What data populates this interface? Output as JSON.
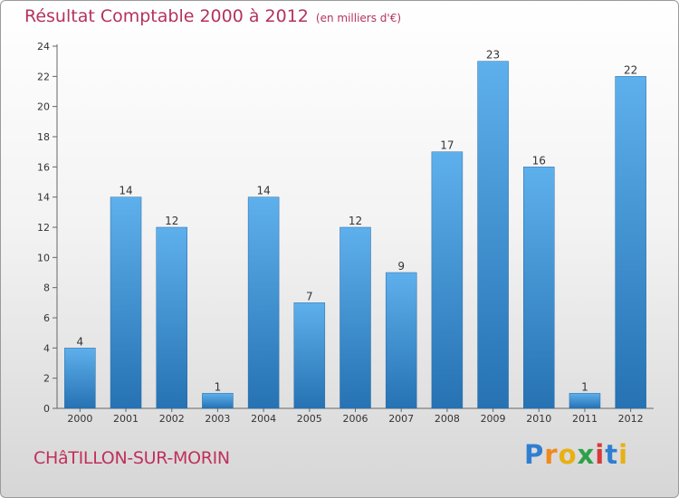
{
  "chart_data": {
    "type": "bar",
    "title": "Résultat Comptable 2000 à 2012",
    "subtitle": "(en milliers d'€)",
    "categories": [
      "2000",
      "2001",
      "2002",
      "2003",
      "2004",
      "2005",
      "2006",
      "2007",
      "2008",
      "2009",
      "2010",
      "2011",
      "2012"
    ],
    "values": [
      4,
      14,
      12,
      1,
      14,
      7,
      12,
      9,
      17,
      23,
      16,
      1,
      22
    ],
    "xlabel": "",
    "ylabel": "",
    "ylim": [
      0,
      24
    ],
    "yticks": [
      0,
      2,
      4,
      6,
      8,
      10,
      12,
      14,
      16,
      18,
      20,
      22,
      24
    ],
    "grid": false,
    "bar_color": "#3d8fd1"
  },
  "commune": "CHâTILLON-SUR-MORIN",
  "logo": {
    "letters": [
      "P",
      "r",
      "o",
      "x",
      "i",
      "t",
      "i"
    ],
    "colors": [
      "#2f7fd0",
      "#f08a1c",
      "#e8b012",
      "#2fa04a",
      "#d63a3a",
      "#2f7fd0",
      "#e8b012"
    ]
  }
}
